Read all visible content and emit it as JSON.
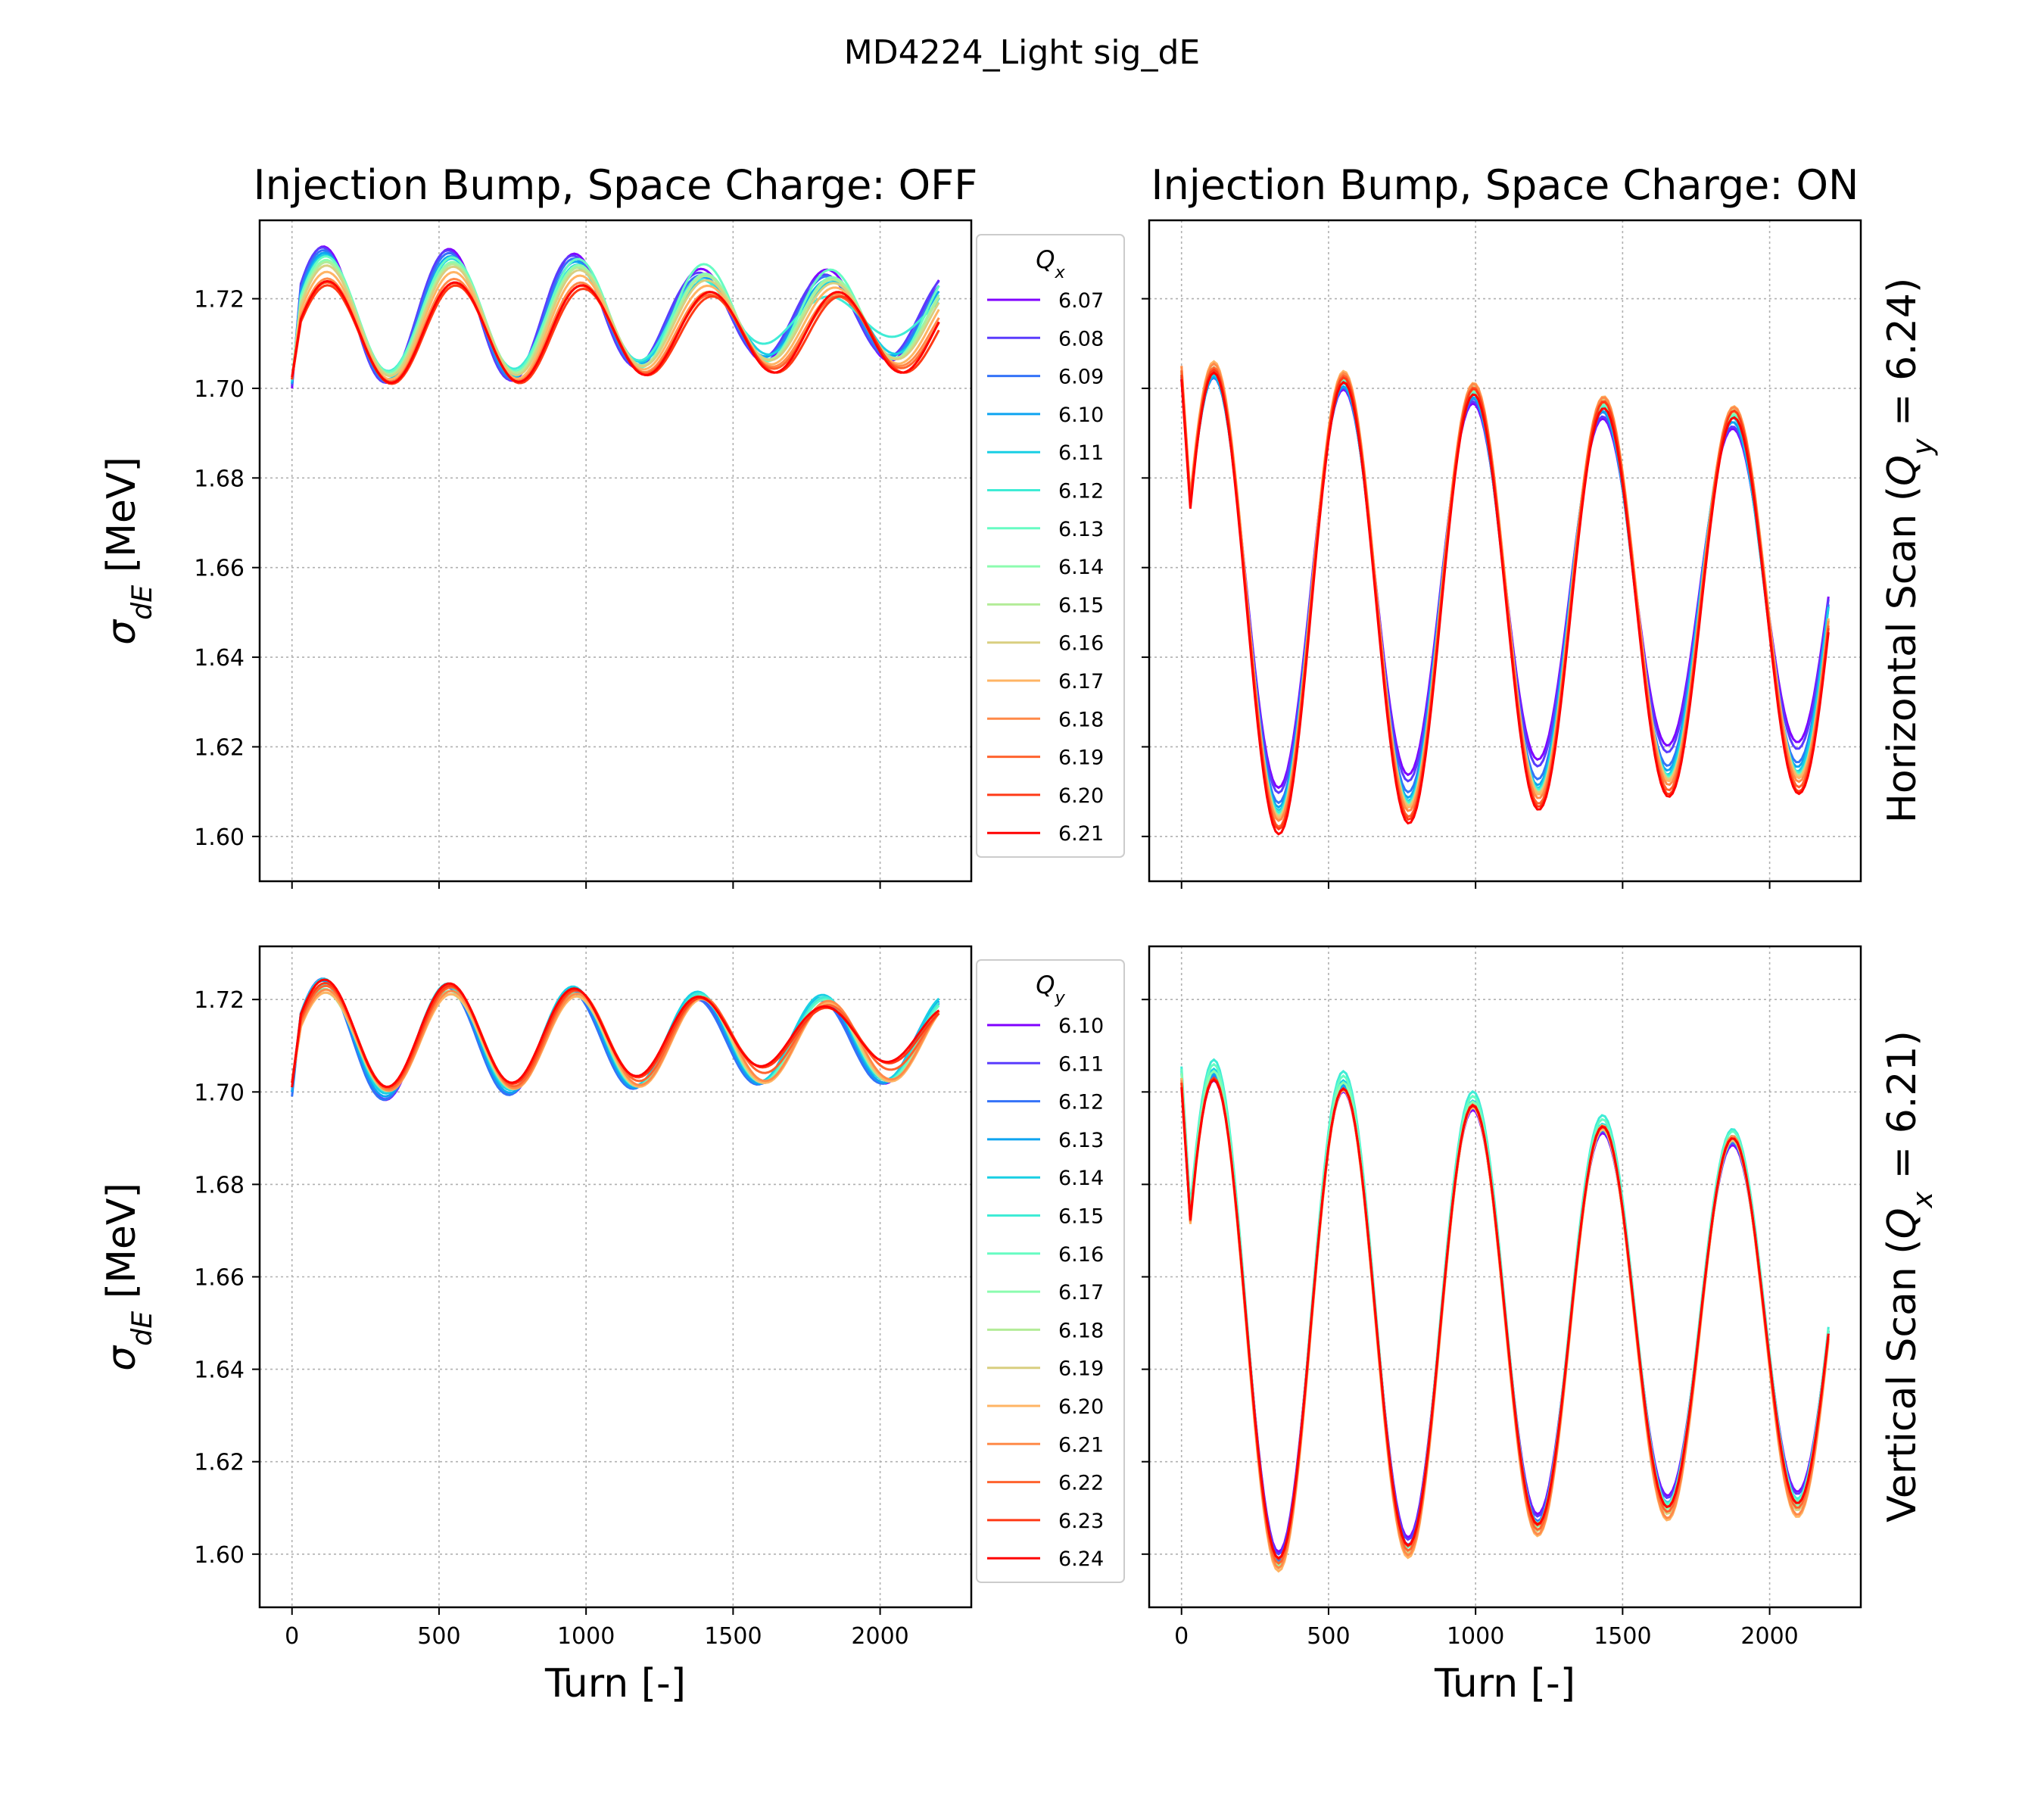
{
  "figure": {
    "suptitle": "MD4224_Light sig_dE"
  },
  "chart_data": [
    {
      "id": "p00",
      "type": "line",
      "title": "Injection Bump, Space Charge: OFF",
      "xlabel": "",
      "ylabel": "σdE [MeV]",
      "xlim": [
        -110,
        2310
      ],
      "ylim": [
        1.59,
        1.7375
      ],
      "xticks": [
        0,
        500,
        1000,
        1500,
        2000
      ],
      "yticks": [
        1.6,
        1.62,
        1.64,
        1.66,
        1.68,
        1.7,
        1.72
      ],
      "ytick_labels": [
        "1.60",
        "1.62",
        "1.64",
        "1.66",
        "1.68",
        "1.70",
        "1.72"
      ],
      "show_xtick_labels": false,
      "show_ytick_labels": true,
      "grid": true,
      "legend": {
        "title": "Qx",
        "placement": "outside-right",
        "entries": [
          "6.07",
          "6.08",
          "6.09",
          "6.10",
          "6.11",
          "6.12",
          "6.13",
          "6.14",
          "6.15",
          "6.16",
          "6.17",
          "6.18",
          "6.19",
          "6.20",
          "6.21"
        ],
        "colors": [
          "#8000ff",
          "#5a3cfd",
          "#3473f8",
          "#0ea4f0",
          "#19cfe4",
          "#3fecd6",
          "#67fcc3",
          "#8cfcaf",
          "#b3ec98",
          "#d9cf80",
          "#ffb464",
          "#ff8a49",
          "#ff632e",
          "#ff3a16",
          "#ff0000"
        ]
      },
      "series_model": "damped sinusoid, period ~430 turns, turns 0-2200",
      "series_params": [
        {
          "y0": 1.7,
          "mean": 1.7163,
          "amp": [
            0.0155,
            0.0149,
            0.0145,
            0.0104,
            0.0102
          ],
          "period": 428,
          "phase": 0
        },
        {
          "y0": 1.7005,
          "mean": 1.7162,
          "amp": [
            0.0154,
            0.0147,
            0.0142,
            0.0097,
            0.0092
          ],
          "period": 427,
          "phase": -3
        },
        {
          "y0": 1.701,
          "mean": 1.716,
          "amp": [
            0.015,
            0.0143,
            0.0138,
            0.0093,
            0.009
          ],
          "period": 428,
          "phase": 0
        },
        {
          "y0": 1.701,
          "mean": 1.7158,
          "amp": [
            0.0147,
            0.0138,
            0.0133,
            0.0091,
            0.0085
          ],
          "period": 429,
          "phase": 3
        },
        {
          "y0": 1.7015,
          "mean": 1.7157,
          "amp": [
            0.0143,
            0.0134,
            0.0128,
            0.0085,
            0.008
          ],
          "period": 431,
          "phase": 5
        },
        {
          "y0": 1.702,
          "mean": 1.716,
          "amp": [
            0.0125,
            0.012,
            0.0115,
            0.009,
            0.0045
          ],
          "period": 428,
          "phase": 7
        },
        {
          "y0": 1.702,
          "mean": 1.7165,
          "amp": [
            0.013,
            0.0128,
            0.0126,
            0.0115,
            0.01
          ],
          "period": 429,
          "phase": 8
        },
        {
          "y0": 1.702,
          "mean": 1.7158,
          "amp": [
            0.013,
            0.0125,
            0.0122,
            0.01,
            0.009
          ],
          "period": 430,
          "phase": 9
        },
        {
          "y0": 1.702,
          "mean": 1.7155,
          "amp": [
            0.0128,
            0.0123,
            0.012,
            0.0098,
            0.0088
          ],
          "period": 430,
          "phase": 10
        },
        {
          "y0": 1.702,
          "mean": 1.715,
          "amp": [
            0.0125,
            0.0122,
            0.012,
            0.0093,
            0.0085
          ],
          "period": 431,
          "phase": 10
        },
        {
          "y0": 1.702,
          "mean": 1.714,
          "amp": [
            0.012,
            0.012,
            0.0118,
            0.009,
            0.0085
          ],
          "period": 432,
          "phase": 10
        },
        {
          "y0": 1.702,
          "mean": 1.713,
          "amp": [
            0.0115,
            0.0115,
            0.0112,
            0.0087,
            0.008
          ],
          "period": 433,
          "phase": 11
        },
        {
          "y0": 1.702,
          "mean": 1.7125,
          "amp": [
            0.0112,
            0.011,
            0.011,
            0.0085,
            0.008
          ],
          "period": 434,
          "phase": 11
        },
        {
          "y0": 1.702,
          "mean": 1.712,
          "amp": [
            0.011,
            0.011,
            0.0108,
            0.0085,
            0.0085
          ],
          "period": 436,
          "phase": 12
        },
        {
          "y0": 1.7025,
          "mean": 1.7125,
          "amp": [
            0.0115,
            0.0112,
            0.011,
            0.009,
            0.009
          ],
          "period": 434,
          "phase": 12
        }
      ]
    },
    {
      "id": "p01",
      "type": "line",
      "title": "Injection Bump, Space Charge: ON",
      "xlabel": "",
      "ylabel": "",
      "side_label": "Horizontal Scan (Qy = 6.24)",
      "xlim": [
        -110,
        2310
      ],
      "ylim": [
        1.59,
        1.7375
      ],
      "xticks": [
        0,
        500,
        1000,
        1500,
        2000
      ],
      "yticks": [
        1.6,
        1.62,
        1.64,
        1.66,
        1.68,
        1.7,
        1.72
      ],
      "show_xtick_labels": false,
      "show_ytick_labels": false,
      "grid": true,
      "series_model": "damped sinusoid, period ~440 turns, turns 0-2200",
      "series_params": [
        {
          "y0": 1.702,
          "mean": 1.656,
          "amp": [
            0.047,
            0.0445,
            0.0415,
            0.038,
            0.035
          ],
          "period": 441,
          "phase": 0
        },
        {
          "y0": 1.702,
          "mean": 1.6555,
          "amp": [
            0.0475,
            0.0452,
            0.0425,
            0.039,
            0.036
          ],
          "period": 441,
          "phase": 0
        },
        {
          "y0": 1.7025,
          "mean": 1.6545,
          "amp": [
            0.0485,
            0.0465,
            0.044,
            0.041,
            0.038
          ],
          "period": 441,
          "phase": 0
        },
        {
          "y0": 1.7025,
          "mean": 1.654,
          "amp": [
            0.049,
            0.047,
            0.0448,
            0.0418,
            0.0385
          ],
          "period": 441,
          "phase": 0
        },
        {
          "y0": 1.703,
          "mean": 1.654,
          "amp": [
            0.0495,
            0.0478,
            0.0455,
            0.0425,
            0.0395
          ],
          "period": 441,
          "phase": 0
        },
        {
          "y0": 1.703,
          "mean": 1.654,
          "amp": [
            0.05,
            0.0482,
            0.0458,
            0.0428,
            0.0398
          ],
          "period": 442,
          "phase": 0
        },
        {
          "y0": 1.7035,
          "mean": 1.654,
          "amp": [
            0.0505,
            0.0488,
            0.0462,
            0.0432,
            0.0402
          ],
          "period": 442,
          "phase": 0
        },
        {
          "y0": 1.7035,
          "mean": 1.654,
          "amp": [
            0.051,
            0.049,
            0.0465,
            0.0436,
            0.0406
          ],
          "period": 442,
          "phase": 0
        },
        {
          "y0": 1.704,
          "mean": 1.654,
          "amp": [
            0.0512,
            0.0492,
            0.0468,
            0.0438,
            0.0408
          ],
          "period": 442,
          "phase": 0
        },
        {
          "y0": 1.704,
          "mean": 1.6545,
          "amp": [
            0.0515,
            0.0495,
            0.047,
            0.044,
            0.041
          ],
          "period": 442,
          "phase": 0
        },
        {
          "y0": 1.705,
          "mean": 1.6545,
          "amp": [
            0.052,
            0.05,
            0.0475,
            0.0445,
            0.0415
          ],
          "period": 442,
          "phase": 0
        },
        {
          "y0": 1.705,
          "mean": 1.654,
          "amp": [
            0.052,
            0.05,
            0.0478,
            0.0448,
            0.0418
          ],
          "period": 442,
          "phase": 0
        },
        {
          "y0": 1.704,
          "mean": 1.653,
          "amp": [
            0.052,
            0.0505,
            0.048,
            0.045,
            0.042
          ],
          "period": 442,
          "phase": 0
        },
        {
          "y0": 1.703,
          "mean": 1.6525,
          "amp": [
            0.052,
            0.0505,
            0.0482,
            0.0452,
            0.0425
          ],
          "period": 442,
          "phase": 0
        },
        {
          "y0": 1.702,
          "mean": 1.6515,
          "amp": [
            0.0525,
            0.0505,
            0.048,
            0.0448,
            0.042
          ],
          "period": 442,
          "phase": 0
        }
      ]
    },
    {
      "id": "p10",
      "type": "line",
      "title": "",
      "xlabel": "Turn [-]",
      "ylabel": "σdE [MeV]",
      "xlim": [
        -110,
        2310
      ],
      "ylim": [
        1.5885,
        1.7315
      ],
      "xticks": [
        0,
        500,
        1000,
        1500,
        2000
      ],
      "xtick_labels": [
        "0",
        "500",
        "1000",
        "1500",
        "2000"
      ],
      "yticks": [
        1.6,
        1.62,
        1.64,
        1.66,
        1.68,
        1.7,
        1.72
      ],
      "ytick_labels": [
        "1.60",
        "1.62",
        "1.64",
        "1.66",
        "1.68",
        "1.70",
        "1.72"
      ],
      "show_xtick_labels": true,
      "show_ytick_labels": true,
      "grid": true,
      "legend": {
        "title": "Qy",
        "placement": "outside-right",
        "entries": [
          "6.10",
          "6.11",
          "6.12",
          "6.13",
          "6.14",
          "6.15",
          "6.16",
          "6.17",
          "6.18",
          "6.19",
          "6.20",
          "6.21",
          "6.22",
          "6.23",
          "6.24"
        ],
        "colors": [
          "#8000ff",
          "#5a3cfd",
          "#3473f8",
          "#0ea4f0",
          "#19cfe4",
          "#3fecd6",
          "#67fcc3",
          "#8cfcaf",
          "#b3ec98",
          "#d9cf80",
          "#ffb464",
          "#ff8a49",
          "#ff632e",
          "#ff3a16",
          "#ff0000"
        ]
      },
      "series_model": "damped sinusoid, period ~425 turns, turns 0-2200",
      "series_params": [
        {
          "y0": 1.7,
          "mean": 1.7108,
          "amp": [
            0.014,
            0.012,
            0.011,
            0.0092,
            0.009
          ],
          "period": 424,
          "phase": 0
        },
        {
          "y0": 1.7,
          "mean": 1.711,
          "amp": [
            0.014,
            0.012,
            0.0112,
            0.0092,
            0.009
          ],
          "period": 424,
          "phase": 0
        },
        {
          "y0": 1.699,
          "mean": 1.7108,
          "amp": [
            0.0138,
            0.012,
            0.0112,
            0.0095,
            0.009
          ],
          "period": 423,
          "phase": -2
        },
        {
          "y0": 1.7,
          "mean": 1.7112,
          "amp": [
            0.0132,
            0.0118,
            0.0112,
            0.0098,
            0.0092
          ],
          "period": 424,
          "phase": 0
        },
        {
          "y0": 1.701,
          "mean": 1.7118,
          "amp": [
            0.013,
            0.0118,
            0.0112,
            0.01,
            0.0092
          ],
          "period": 424,
          "phase": 2
        },
        {
          "y0": 1.702,
          "mean": 1.7115,
          "amp": [
            0.0118,
            0.0112,
            0.0108,
            0.01,
            0.009
          ],
          "period": 425,
          "phase": 4
        },
        {
          "y0": 1.702,
          "mean": 1.7112,
          "amp": [
            0.0112,
            0.0108,
            0.0102,
            0.0098,
            0.0088
          ],
          "period": 425,
          "phase": 6
        },
        {
          "y0": 1.702,
          "mean": 1.7108,
          "amp": [
            0.0108,
            0.0105,
            0.01,
            0.0095,
            0.0085
          ],
          "period": 426,
          "phase": 7
        },
        {
          "y0": 1.702,
          "mean": 1.7108,
          "amp": [
            0.0108,
            0.0105,
            0.01,
            0.0095,
            0.0085
          ],
          "period": 426,
          "phase": 8
        },
        {
          "y0": 1.702,
          "mean": 1.7108,
          "amp": [
            0.0108,
            0.0105,
            0.01,
            0.0095,
            0.0085
          ],
          "period": 426,
          "phase": 8
        },
        {
          "y0": 1.702,
          "mean": 1.7108,
          "amp": [
            0.0108,
            0.0105,
            0.01,
            0.0095,
            0.0085
          ],
          "period": 427,
          "phase": 9
        },
        {
          "y0": 1.702,
          "mean": 1.7112,
          "amp": [
            0.011,
            0.0108,
            0.0102,
            0.0095,
            0.0085
          ],
          "period": 427,
          "phase": 9
        },
        {
          "y0": 1.702,
          "mean": 1.7118,
          "amp": [
            0.0112,
            0.011,
            0.0104,
            0.009,
            0.007
          ],
          "period": 427,
          "phase": 8
        },
        {
          "y0": 1.702,
          "mean": 1.7122,
          "amp": [
            0.0115,
            0.011,
            0.0102,
            0.0085,
            0.006
          ],
          "period": 426,
          "phase": 7
        },
        {
          "y0": 1.701,
          "mean": 1.7125,
          "amp": [
            0.012,
            0.0112,
            0.0102,
            0.0085,
            0.006
          ],
          "period": 425,
          "phase": 5
        }
      ]
    },
    {
      "id": "p11",
      "type": "line",
      "title": "",
      "xlabel": "Turn [-]",
      "ylabel": "",
      "side_label": "Vertical Scan (Qx = 6.21)",
      "xlim": [
        -110,
        2310
      ],
      "ylim": [
        1.5885,
        1.7315
      ],
      "xticks": [
        0,
        500,
        1000,
        1500,
        2000
      ],
      "xtick_labels": [
        "0",
        "500",
        "1000",
        "1500",
        "2000"
      ],
      "yticks": [
        1.6,
        1.62,
        1.64,
        1.66,
        1.68,
        1.7,
        1.72
      ],
      "show_xtick_labels": true,
      "show_ytick_labels": false,
      "grid": true,
      "series_model": "damped sinusoid, period ~440 turns, turns 0-2200",
      "series_params": [
        {
          "y0": 1.703,
          "mean": 1.651,
          "amp": [
            0.052,
            0.05,
            0.0465,
            0.041,
            0.0375
          ],
          "period": 441,
          "phase": 0
        },
        {
          "y0": 1.703,
          "mean": 1.651,
          "amp": [
            0.0525,
            0.0505,
            0.047,
            0.0415,
            0.038
          ],
          "period": 441,
          "phase": 0
        },
        {
          "y0": 1.704,
          "mean": 1.6505,
          "amp": [
            0.0535,
            0.0515,
            0.0475,
            0.042,
            0.0385
          ],
          "period": 441,
          "phase": 0
        },
        {
          "y0": 1.7045,
          "mean": 1.6505,
          "amp": [
            0.054,
            0.052,
            0.048,
            0.0425,
            0.039
          ],
          "period": 441,
          "phase": 0
        },
        {
          "y0": 1.705,
          "mean": 1.651,
          "amp": [
            0.0545,
            0.0525,
            0.0485,
            0.043,
            0.0395
          ],
          "period": 441,
          "phase": 0
        },
        {
          "y0": 1.7055,
          "mean": 1.652,
          "amp": [
            0.0555,
            0.0535,
            0.0495,
            0.044,
            0.04
          ],
          "period": 441,
          "phase": 0
        },
        {
          "y0": 1.705,
          "mean": 1.6515,
          "amp": [
            0.055,
            0.053,
            0.049,
            0.0435,
            0.04
          ],
          "period": 441,
          "phase": 0
        },
        {
          "y0": 1.704,
          "mean": 1.6505,
          "amp": [
            0.0545,
            0.0525,
            0.0488,
            0.0432,
            0.04
          ],
          "period": 441,
          "phase": 0
        },
        {
          "y0": 1.703,
          "mean": 1.6495,
          "amp": [
            0.054,
            0.052,
            0.0485,
            0.0432,
            0.04
          ],
          "period": 441,
          "phase": 0
        },
        {
          "y0": 1.703,
          "mean": 1.6495,
          "amp": [
            0.054,
            0.052,
            0.0485,
            0.0432,
            0.04
          ],
          "period": 441,
          "phase": 0
        },
        {
          "y0": 1.703,
          "mean": 1.649,
          "amp": [
            0.0542,
            0.0522,
            0.049,
            0.0438,
            0.041
          ],
          "period": 441,
          "phase": 0
        },
        {
          "y0": 1.7025,
          "mean": 1.6495,
          "amp": [
            0.054,
            0.052,
            0.049,
            0.044,
            0.041
          ],
          "period": 441,
          "phase": 0
        },
        {
          "y0": 1.702,
          "mean": 1.65,
          "amp": [
            0.0535,
            0.0515,
            0.0485,
            0.0435,
            0.04
          ],
          "period": 441,
          "phase": 0
        },
        {
          "y0": 1.702,
          "mean": 1.6505,
          "amp": [
            0.053,
            0.051,
            0.048,
            0.043,
            0.0395
          ],
          "period": 441,
          "phase": 0
        },
        {
          "y0": 1.701,
          "mean": 1.6505,
          "amp": [
            0.0525,
            0.051,
            0.0478,
            0.0428,
            0.0395
          ],
          "period": 441,
          "phase": 0
        }
      ]
    }
  ]
}
